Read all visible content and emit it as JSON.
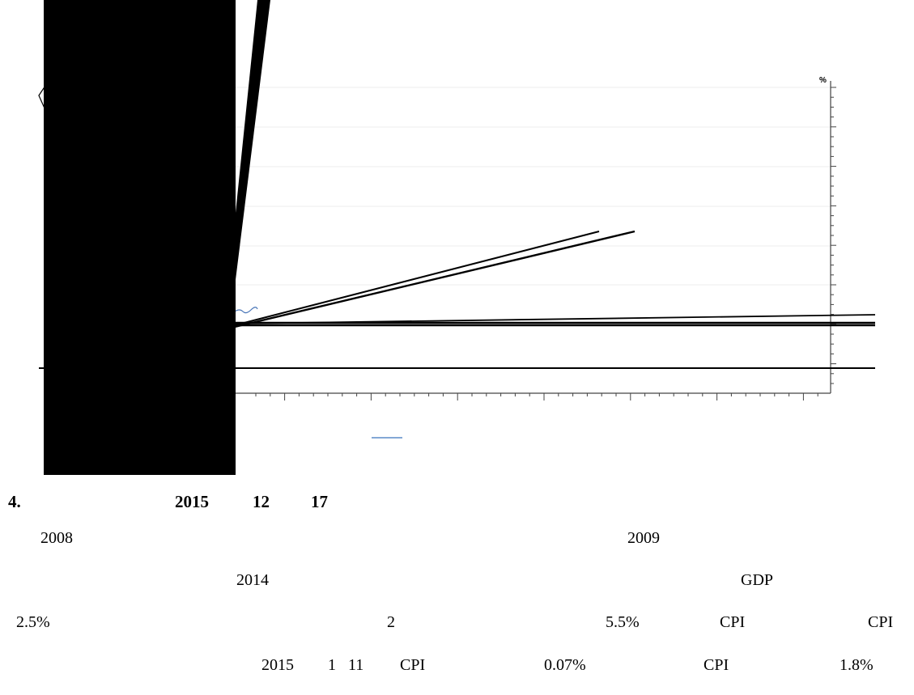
{
  "figure": {
    "y_unit": "%"
  },
  "section": {
    "number": "4.",
    "year": "2015",
    "month": "12",
    "day": "17"
  },
  "body_text": {
    "line1": {
      "a": "2008",
      "b": "2009"
    },
    "line2": {
      "a": "2014",
      "b": "GDP"
    },
    "line3": {
      "a": "2.5%",
      "b": "2",
      "c": "5.5%",
      "d": "CPI",
      "e": "CPI"
    },
    "line4": {
      "a": "2015",
      "b": "1",
      "c": "11",
      "d": "CPI",
      "e": "0.07%",
      "f": "CPI",
      "g": "1.8%"
    }
  }
}
